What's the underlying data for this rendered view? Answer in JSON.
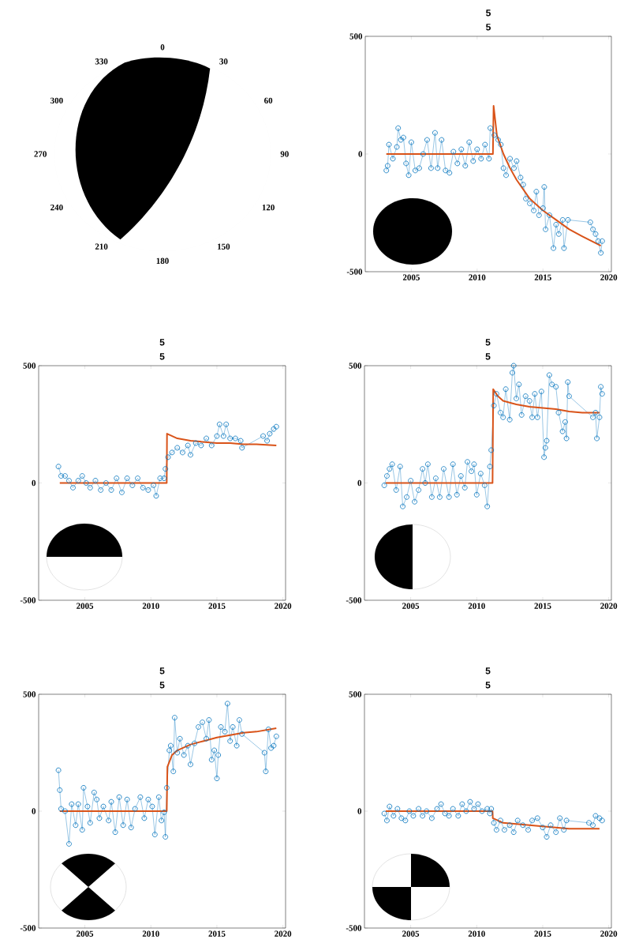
{
  "chart_data": [
    {
      "type": "other",
      "categories": [
        "0",
        "30",
        "60",
        "90",
        "120",
        "150",
        "180",
        "210",
        "240",
        "270",
        "300",
        "330"
      ]
    },
    {
      "type": "line",
      "title": "5",
      "subtitle": "5",
      "xlim": [
        2001.5,
        2020.2
      ],
      "ylim": [
        -500,
        500
      ],
      "xticks": [
        2005,
        2010,
        2015,
        2020
      ],
      "yticks": [
        -500,
        0,
        500
      ],
      "series": [
        {
          "color": "#0072bd",
          "marker": "circle",
          "x": [
            2003.1,
            2003.2,
            2003.3,
            2003.6,
            2003.9,
            2004.0,
            2004.2,
            2004.4,
            2004.6,
            2004.8,
            2005.0,
            2005.3,
            2005.6,
            2005.9,
            2006.2,
            2006.5,
            2006.8,
            2007.0,
            2007.3,
            2007.6,
            2007.9,
            2008.2,
            2008.5,
            2008.8,
            2009.1,
            2009.4,
            2009.7,
            2010.0,
            2010.3,
            2010.6,
            2010.9,
            2011.0,
            2011.3,
            2011.6,
            2011.8,
            2012.0,
            2012.2,
            2012.5,
            2012.8,
            2013.0,
            2013.3,
            2013.5,
            2013.7,
            2014.0,
            2014.3,
            2014.5,
            2014.7,
            2015.0,
            2015.1,
            2015.2,
            2015.5,
            2015.8,
            2016.0,
            2016.2,
            2016.5,
            2016.6,
            2016.9,
            2018.6,
            2018.8,
            2019.0,
            2019.2,
            2019.4,
            2019.5
          ],
          "values": [
            -70,
            -50,
            40,
            -20,
            30,
            110,
            60,
            70,
            -40,
            -90,
            50,
            -70,
            -60,
            0,
            60,
            -60,
            90,
            -60,
            60,
            -70,
            -80,
            10,
            -40,
            20,
            -50,
            50,
            -30,
            20,
            -20,
            40,
            -20,
            110,
            80,
            60,
            40,
            -60,
            -90,
            -20,
            -60,
            -30,
            -100,
            -130,
            -190,
            -210,
            -240,
            -160,
            -260,
            -230,
            -140,
            -320,
            -260,
            -400,
            -300,
            -340,
            -280,
            -400,
            -280,
            -290,
            -320,
            -340,
            -370,
            -420,
            -370
          ]
        },
        {
          "color": "#d95319",
          "marker": "none",
          "x": [
            2003.1,
            2011.2,
            2011.25,
            2011.5,
            2012,
            2012.5,
            2013,
            2014,
            2015,
            2016,
            2017,
            2018,
            2019.4
          ],
          "values": [
            0,
            0,
            205,
            80,
            0,
            -60,
            -110,
            -190,
            -240,
            -280,
            -320,
            -350,
            -390
          ]
        }
      ]
    },
    {
      "type": "line",
      "title": "5",
      "subtitle": "5",
      "xlim": [
        2001.5,
        2020.2
      ],
      "ylim": [
        -500,
        500
      ],
      "xticks": [
        2005,
        2010,
        2015,
        2020
      ],
      "yticks": [
        -500,
        0,
        500
      ],
      "series": [
        {
          "color": "#0072bd",
          "marker": "circle",
          "x": [
            2003.0,
            2003.2,
            2003.5,
            2003.8,
            2004.1,
            2004.5,
            2004.8,
            2005.1,
            2005.4,
            2005.8,
            2006.2,
            2006.6,
            2007.0,
            2007.4,
            2007.8,
            2008.2,
            2008.6,
            2009.0,
            2009.4,
            2009.8,
            2010.2,
            2010.4,
            2010.7,
            2011.0,
            2011.1,
            2011.3,
            2011.6,
            2012.0,
            2012.4,
            2012.8,
            2013.0,
            2013.4,
            2013.8,
            2014.2,
            2014.6,
            2015.0,
            2015.2,
            2015.5,
            2015.7,
            2016.0,
            2016.4,
            2016.8,
            2016.9,
            2018.5,
            2018.8,
            2019.0,
            2019.3,
            2019.5
          ],
          "values": [
            70,
            30,
            30,
            10,
            -20,
            10,
            30,
            0,
            -20,
            10,
            -30,
            0,
            -30,
            20,
            -40,
            20,
            -10,
            20,
            -20,
            -30,
            -10,
            -55,
            20,
            20,
            60,
            110,
            130,
            150,
            130,
            160,
            120,
            170,
            160,
            190,
            160,
            200,
            250,
            200,
            250,
            190,
            190,
            180,
            150,
            200,
            180,
            210,
            230,
            240
          ]
        },
        {
          "color": "#d95319",
          "marker": "none",
          "x": [
            2003.1,
            2011.2,
            2011.22,
            2012,
            2013,
            2014,
            2015,
            2016,
            2017,
            2018,
            2019.5
          ],
          "values": [
            0,
            0,
            210,
            190,
            180,
            175,
            170,
            170,
            165,
            165,
            160
          ]
        }
      ]
    },
    {
      "type": "line",
      "title": "5",
      "subtitle": "5",
      "xlim": [
        2001.5,
        2020.2
      ],
      "ylim": [
        -500,
        500
      ],
      "xticks": [
        2005,
        2010,
        2015,
        2020
      ],
      "yticks": [
        -500,
        0,
        500
      ],
      "series": [
        {
          "color": "#0072bd",
          "marker": "circle",
          "x": [
            2003.0,
            2003.2,
            2003.4,
            2003.6,
            2003.9,
            2004.2,
            2004.4,
            2004.7,
            2005.0,
            2005.3,
            2005.6,
            2005.9,
            2006.1,
            2006.3,
            2006.6,
            2006.9,
            2007.2,
            2007.5,
            2007.9,
            2008.2,
            2008.5,
            2008.8,
            2009.1,
            2009.3,
            2009.6,
            2009.8,
            2010.0,
            2010.3,
            2010.6,
            2010.8,
            2011.0,
            2011.1,
            2011.3,
            2011.5,
            2011.8,
            2012.0,
            2012.2,
            2012.5,
            2012.7,
            2012.8,
            2013.0,
            2013.2,
            2013.4,
            2013.7,
            2014.0,
            2014.2,
            2014.4,
            2014.6,
            2014.9,
            2015.1,
            2015.2,
            2015.3,
            2015.5,
            2015.7,
            2016.0,
            2016.2,
            2016.5,
            2016.7,
            2016.8,
            2016.9,
            2017.0,
            2018.8,
            2019.0,
            2019.1,
            2019.3,
            2019.4,
            2019.5
          ],
          "values": [
            -10,
            30,
            60,
            80,
            -30,
            70,
            -100,
            -60,
            10,
            -80,
            -30,
            60,
            0,
            80,
            -60,
            20,
            -60,
            60,
            -60,
            80,
            -50,
            30,
            -20,
            90,
            50,
            80,
            -50,
            40,
            -10,
            -100,
            70,
            140,
            330,
            380,
            300,
            280,
            400,
            270,
            470,
            500,
            360,
            420,
            290,
            370,
            350,
            280,
            380,
            280,
            390,
            110,
            150,
            180,
            460,
            420,
            410,
            300,
            220,
            260,
            190,
            430,
            370,
            280,
            300,
            190,
            280,
            410,
            380
          ]
        },
        {
          "color": "#d95319",
          "marker": "none",
          "x": [
            2003.1,
            2011.2,
            2011.25,
            2011.6,
            2012,
            2013,
            2014,
            2015,
            2016,
            2017,
            2018,
            2019.3
          ],
          "values": [
            0,
            0,
            400,
            370,
            350,
            335,
            325,
            320,
            315,
            305,
            300,
            300
          ]
        }
      ]
    },
    {
      "type": "line",
      "title": "5",
      "subtitle": "5",
      "xlim": [
        2001.5,
        2020.2
      ],
      "ylim": [
        -500,
        500
      ],
      "xticks": [
        2005,
        2010,
        2015,
        2020
      ],
      "yticks": [
        -500,
        0,
        500
      ],
      "series": [
        {
          "color": "#0072bd",
          "marker": "circle",
          "x": [
            2003.0,
            2003.1,
            2003.2,
            2003.5,
            2003.8,
            2004.0,
            2004.3,
            2004.5,
            2004.8,
            2004.9,
            2005.2,
            2005.4,
            2005.7,
            2005.9,
            2006.1,
            2006.4,
            2006.8,
            2007.0,
            2007.3,
            2007.6,
            2007.9,
            2008.2,
            2008.5,
            2008.8,
            2009.2,
            2009.5,
            2009.8,
            2010.1,
            2010.3,
            2010.6,
            2010.8,
            2011.0,
            2011.1,
            2011.2,
            2011.4,
            2011.5,
            2011.7,
            2011.8,
            2012.0,
            2012.2,
            2012.5,
            2012.8,
            2013.0,
            2013.3,
            2013.6,
            2013.9,
            2014.2,
            2014.4,
            2014.6,
            2014.8,
            2015.0,
            2015.1,
            2015.3,
            2015.6,
            2015.8,
            2016.0,
            2016.2,
            2016.5,
            2016.7,
            2016.9,
            2018.6,
            2018.7,
            2018.9,
            2019.1,
            2019.3,
            2019.5
          ],
          "values": [
            175,
            90,
            10,
            0,
            -140,
            30,
            -60,
            30,
            -80,
            100,
            20,
            -50,
            80,
            50,
            -30,
            20,
            -40,
            40,
            -90,
            60,
            -60,
            50,
            -70,
            10,
            60,
            -30,
            50,
            20,
            -100,
            60,
            -40,
            -5,
            -110,
            100,
            260,
            280,
            170,
            400,
            250,
            310,
            240,
            280,
            200,
            290,
            360,
            380,
            310,
            390,
            220,
            260,
            140,
            240,
            360,
            340,
            460,
            300,
            360,
            280,
            390,
            330,
            250,
            170,
            350,
            270,
            280,
            320
          ]
        },
        {
          "color": "#d95319",
          "marker": "none",
          "x": [
            2003.1,
            2011.2,
            2011.25,
            2011.6,
            2012,
            2013,
            2014,
            2015,
            2016,
            2017,
            2018,
            2019.5
          ],
          "values": [
            0,
            0,
            190,
            240,
            260,
            285,
            300,
            315,
            325,
            335,
            340,
            355
          ]
        }
      ]
    },
    {
      "type": "line",
      "title": "5",
      "subtitle": "5",
      "xlim": [
        2001.5,
        2020.2
      ],
      "ylim": [
        -500,
        500
      ],
      "xticks": [
        2005,
        2010,
        2015,
        2020
      ],
      "yticks": [
        -500,
        0,
        500
      ],
      "series": [
        {
          "color": "#0072bd",
          "marker": "circle",
          "x": [
            2003.0,
            2003.2,
            2003.4,
            2003.7,
            2004.0,
            2004.3,
            2004.6,
            2004.9,
            2005.2,
            2005.6,
            2005.9,
            2006.2,
            2006.6,
            2007.0,
            2007.3,
            2007.6,
            2007.9,
            2008.2,
            2008.6,
            2008.9,
            2009.2,
            2009.5,
            2009.8,
            2010.1,
            2010.4,
            2010.8,
            2011.0,
            2011.1,
            2011.3,
            2011.5,
            2011.8,
            2012.1,
            2012.5,
            2012.8,
            2013.1,
            2013.5,
            2013.9,
            2014.2,
            2014.6,
            2015.0,
            2015.3,
            2015.6,
            2016.0,
            2016.3,
            2016.6,
            2016.8,
            2018.5,
            2018.8,
            2019.0,
            2019.3,
            2019.5
          ],
          "values": [
            -10,
            -40,
            20,
            -20,
            10,
            -30,
            -40,
            0,
            -20,
            10,
            -20,
            0,
            -30,
            10,
            30,
            -10,
            -20,
            10,
            -20,
            30,
            0,
            40,
            10,
            30,
            0,
            10,
            -10,
            10,
            -50,
            -80,
            -40,
            -80,
            -60,
            -90,
            -40,
            -60,
            -80,
            -40,
            -30,
            -70,
            -110,
            -60,
            -90,
            -30,
            -80,
            -40,
            -50,
            -60,
            -20,
            -30,
            -40
          ]
        },
        {
          "color": "#d95319",
          "marker": "none",
          "x": [
            2003.1,
            2011.2,
            2011.22,
            2012,
            2013,
            2014,
            2015,
            2016,
            2017,
            2018,
            2019.3
          ],
          "values": [
            0,
            0,
            -30,
            -50,
            -55,
            -60,
            -65,
            -70,
            -75,
            -75,
            -75
          ]
        }
      ]
    }
  ]
}
